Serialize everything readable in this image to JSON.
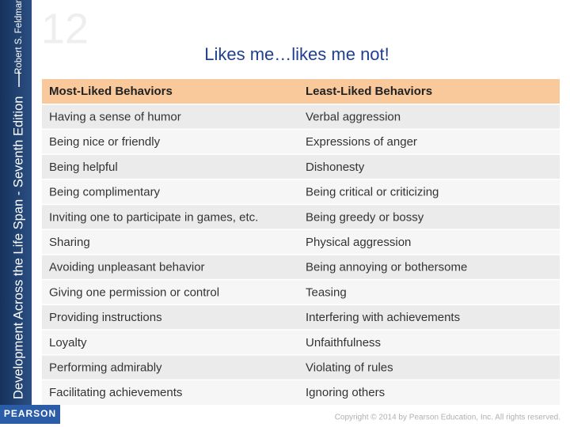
{
  "sidebar": {
    "title": "Development Across the Life Span - Seventh Edition",
    "author": "Robert S. Feldman"
  },
  "watermark": "12",
  "header": {
    "title": "Likes me…likes me not!"
  },
  "table": {
    "columns": [
      "Most-Liked Behaviors",
      "Least-Liked Behaviors"
    ],
    "rows": [
      [
        "Having a sense of humor",
        "Verbal aggression"
      ],
      [
        "Being nice or friendly",
        "Expressions of anger"
      ],
      [
        "Being helpful",
        "Dishonesty"
      ],
      [
        "Being complimentary",
        "Being critical or criticizing"
      ],
      [
        "Inviting one to participate in games, etc.",
        "Being greedy or bossy"
      ],
      [
        "Sharing",
        "Physical aggression"
      ],
      [
        "Avoiding unpleasant behavior",
        "Being annoying or bothersome"
      ],
      [
        "Giving one permission or control",
        "Teasing"
      ],
      [
        "Providing instructions",
        "Interfering with achievements"
      ],
      [
        "Loyalty",
        "Unfaithfulness"
      ],
      [
        "Performing admirably",
        "Violating of rules"
      ],
      [
        "Facilitating achievements",
        "Ignoring others"
      ]
    ]
  },
  "footer": {
    "logo": "PEARSON",
    "copyright": "Copyright © 2014 by Pearson Education, Inc. All rights reserved."
  }
}
